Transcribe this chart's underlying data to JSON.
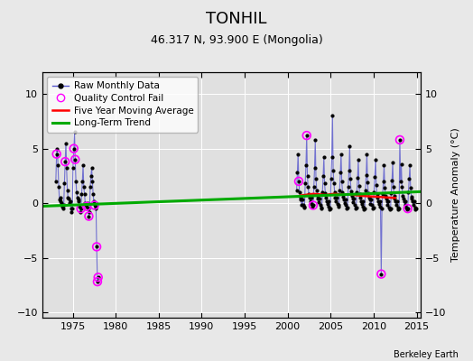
{
  "title": "TONHIL",
  "subtitle": "46.317 N, 93.900 E (Mongolia)",
  "ylabel": "Temperature Anomaly (°C)",
  "credit": "Berkeley Earth",
  "xlim": [
    1971.5,
    2015.5
  ],
  "ylim": [
    -10.5,
    12
  ],
  "yticks": [
    -10,
    -5,
    0,
    5,
    10
  ],
  "xticks": [
    1975,
    1980,
    1985,
    1990,
    1995,
    2000,
    2005,
    2010,
    2015
  ],
  "bg_color": "#e8e8e8",
  "plot_bg_color": "#e0e0e0",
  "grid_color": "white",
  "seg1_x": [
    1973.04,
    1973.13,
    1973.21,
    1973.29,
    1973.38,
    1973.46,
    1973.54,
    1973.63,
    1973.71,
    1973.79,
    1973.88,
    1973.96,
    1974.04,
    1974.13,
    1974.21,
    1974.29,
    1974.38,
    1974.46,
    1974.54,
    1974.63,
    1974.71,
    1974.79,
    1974.88,
    1974.96,
    1975.04,
    1975.13,
    1975.21,
    1975.29,
    1975.38,
    1975.46,
    1975.54,
    1975.63,
    1975.71,
    1975.79,
    1975.88,
    1975.96,
    1976.04,
    1976.13,
    1976.21,
    1976.29,
    1976.38,
    1976.46,
    1976.54,
    1976.63,
    1976.71,
    1976.79,
    1976.88,
    1976.96,
    1977.04,
    1977.13,
    1977.21,
    1977.29,
    1977.38,
    1977.46,
    1977.54,
    1977.63,
    1977.71,
    1977.79,
    1977.88,
    1977.96
  ],
  "seg1_y": [
    2.0,
    4.5,
    5.0,
    3.5,
    1.5,
    0.3,
    0.5,
    0.2,
    0.0,
    -0.3,
    -0.5,
    -0.2,
    1.8,
    3.8,
    5.5,
    3.2,
    1.2,
    0.5,
    0.4,
    0.0,
    0.2,
    -0.5,
    -0.8,
    -0.5,
    3.2,
    5.0,
    6.5,
    4.0,
    2.0,
    1.0,
    0.5,
    0.2,
    0.3,
    -0.3,
    -0.8,
    -0.5,
    0.8,
    2.0,
    3.5,
    1.5,
    0.8,
    0.0,
    -0.2,
    -0.3,
    0.0,
    -0.5,
    -1.2,
    -0.8,
    1.5,
    2.5,
    3.2,
    2.0,
    0.8,
    0.2,
    -0.2,
    -0.5,
    -0.3,
    -4.0,
    -7.2,
    -6.8
  ],
  "seg2_x": [
    2001.04,
    2001.13,
    2001.21,
    2001.29,
    2001.38,
    2001.46,
    2001.54,
    2001.63,
    2001.71,
    2001.79,
    2001.88,
    2001.96,
    2002.04,
    2002.13,
    2002.21,
    2002.29,
    2002.38,
    2002.46,
    2002.54,
    2002.63,
    2002.71,
    2002.79,
    2002.88,
    2002.96,
    2003.04,
    2003.13,
    2003.21,
    2003.29,
    2003.38,
    2003.46,
    2003.54,
    2003.63,
    2003.71,
    2003.79,
    2003.88,
    2003.96,
    2004.04,
    2004.13,
    2004.21,
    2004.29,
    2004.38,
    2004.46,
    2004.54,
    2004.63,
    2004.71,
    2004.79,
    2004.88,
    2004.96,
    2005.04,
    2005.13,
    2005.21,
    2005.29,
    2005.38,
    2005.46,
    2005.54,
    2005.63,
    2005.71,
    2005.79,
    2005.88,
    2005.96,
    2006.04,
    2006.13,
    2006.21,
    2006.29,
    2006.38,
    2006.46,
    2006.54,
    2006.63,
    2006.71,
    2006.79,
    2006.88,
    2006.96,
    2007.04,
    2007.13,
    2007.21,
    2007.29,
    2007.38,
    2007.46,
    2007.54,
    2007.63,
    2007.71,
    2007.79,
    2007.88,
    2007.96,
    2008.04,
    2008.13,
    2008.21,
    2008.29,
    2008.38,
    2008.46,
    2008.54,
    2008.63,
    2008.71,
    2008.79,
    2008.88,
    2008.96,
    2009.04,
    2009.13,
    2009.21,
    2009.29,
    2009.38,
    2009.46,
    2009.54,
    2009.63,
    2009.71,
    2009.79,
    2009.88,
    2009.96,
    2010.04,
    2010.13,
    2010.21,
    2010.29,
    2010.38,
    2010.46,
    2010.54,
    2010.63,
    2010.71,
    2010.79,
    2010.88,
    2010.96,
    2011.04,
    2011.13,
    2011.21,
    2011.29,
    2011.38,
    2011.46,
    2011.54,
    2011.63,
    2011.71,
    2011.79,
    2011.88,
    2011.96,
    2012.04,
    2012.13,
    2012.21,
    2012.29,
    2012.38,
    2012.46,
    2012.54,
    2012.63,
    2012.71,
    2012.79,
    2012.88,
    2012.96,
    2013.04,
    2013.13,
    2013.21,
    2013.29,
    2013.38,
    2013.46,
    2013.54,
    2013.63,
    2013.71,
    2013.79,
    2013.88,
    2013.96,
    2014.04,
    2014.13,
    2014.21,
    2014.29,
    2014.38,
    2014.46,
    2014.54,
    2014.63,
    2014.71,
    2014.79,
    2014.88,
    2014.96
  ],
  "seg2_y": [
    1.2,
    2.8,
    4.5,
    2.0,
    1.0,
    0.5,
    0.3,
    -0.2,
    0.3,
    -0.2,
    -0.4,
    -0.3,
    1.8,
    3.5,
    6.2,
    2.5,
    1.5,
    0.8,
    0.5,
    0.2,
    0.5,
    -0.1,
    -0.3,
    -0.2,
    1.5,
    3.2,
    5.8,
    2.2,
    1.2,
    0.7,
    0.4,
    0.1,
    0.4,
    -0.2,
    -0.5,
    -0.4,
    1.0,
    2.5,
    4.2,
    1.8,
    0.9,
    0.5,
    0.2,
    -0.1,
    0.2,
    -0.3,
    -0.6,
    -0.5,
    2.2,
    4.2,
    8.0,
    3.0,
    1.8,
    1.0,
    0.5,
    0.2,
    0.5,
    -0.1,
    -0.3,
    -0.2,
    1.2,
    2.8,
    4.5,
    2.0,
    1.0,
    0.6,
    0.3,
    0.0,
    0.3,
    -0.2,
    -0.5,
    -0.4,
    1.5,
    3.0,
    5.2,
    2.2,
    1.1,
    0.7,
    0.4,
    0.1,
    0.4,
    -0.2,
    -0.5,
    -0.4,
    1.0,
    2.3,
    4.0,
    1.6,
    0.8,
    0.5,
    0.2,
    -0.1,
    0.2,
    -0.3,
    -0.6,
    -0.5,
    1.2,
    2.6,
    4.5,
    1.9,
    0.9,
    0.5,
    0.3,
    -0.1,
    0.3,
    -0.2,
    -0.5,
    -0.4,
    1.0,
    2.4,
    4.0,
    1.7,
    0.8,
    0.5,
    0.2,
    -0.1,
    0.2,
    -0.3,
    -6.5,
    -0.5,
    0.8,
    2.0,
    3.5,
    1.4,
    0.7,
    0.4,
    0.2,
    -0.2,
    0.2,
    -0.4,
    -0.6,
    -0.5,
    0.9,
    2.1,
    3.7,
    1.5,
    0.7,
    0.4,
    0.2,
    -0.2,
    0.2,
    -0.4,
    -0.6,
    -0.5,
    5.8,
    2.0,
    3.6,
    1.5,
    0.7,
    0.4,
    0.2,
    -0.2,
    0.2,
    -0.4,
    -0.6,
    -0.5,
    1.0,
    2.2,
    3.5,
    1.4,
    0.6,
    0.4,
    0.2,
    -0.2,
    0.2,
    -0.4,
    -0.6,
    -0.5
  ],
  "qc_fail_x": [
    1973.13,
    1974.13,
    1975.13,
    1975.29,
    1975.96,
    1976.63,
    1976.88,
    1977.54,
    1977.79,
    1977.88,
    1977.96,
    2001.29,
    2002.21,
    2002.96,
    2010.88,
    2013.04,
    2013.96
  ],
  "qc_fail_y": [
    4.5,
    3.8,
    5.0,
    4.0,
    -0.5,
    -0.3,
    -1.2,
    -0.2,
    -4.0,
    -7.2,
    -6.8,
    2.0,
    6.2,
    -0.2,
    -6.5,
    5.8,
    -0.5
  ],
  "moving_avg_x": [
    2001.5,
    2002.0,
    2002.5,
    2003.0,
    2003.5,
    2004.0,
    2004.5,
    2005.0,
    2005.5,
    2006.0,
    2006.5,
    2007.0,
    2007.5,
    2008.0,
    2008.5,
    2009.0,
    2009.5,
    2010.0,
    2010.5,
    2011.0,
    2011.5,
    2012.0,
    2012.5
  ],
  "moving_avg_y": [
    0.7,
    0.75,
    0.8,
    0.85,
    0.82,
    0.78,
    0.75,
    0.82,
    0.85,
    0.8,
    0.78,
    0.8,
    0.78,
    0.72,
    0.68,
    0.65,
    0.62,
    0.6,
    0.58,
    0.55,
    0.52,
    0.5,
    0.48
  ],
  "trend_x": [
    1971.5,
    2015.5
  ],
  "trend_y": [
    -0.28,
    1.05
  ],
  "raw_color": "#5555cc",
  "raw_lw": 0.8,
  "dot_color": "black",
  "dot_size": 4,
  "qc_color": "magenta",
  "qc_size": 40,
  "moving_avg_color": "red",
  "moving_avg_lw": 1.8,
  "trend_color": "#00aa00",
  "trend_lw": 2.2,
  "title_fontsize": 13,
  "subtitle_fontsize": 9,
  "tick_fontsize": 8,
  "ylabel_fontsize": 8,
  "legend_fontsize": 7.5,
  "credit_fontsize": 7
}
